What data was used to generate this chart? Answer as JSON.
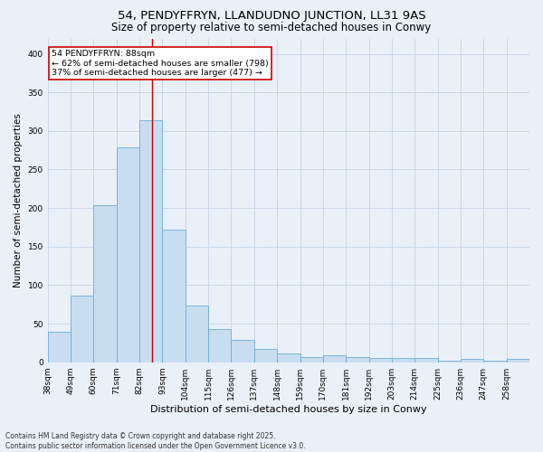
{
  "title1": "54, PENDYFFRYN, LLANDUDNO JUNCTION, LL31 9AS",
  "title2": "Size of property relative to semi-detached houses in Conwy",
  "xlabel": "Distribution of semi-detached houses by size in Conwy",
  "ylabel": "Number of semi-detached properties",
  "categories": [
    "38sqm",
    "49sqm",
    "60sqm",
    "71sqm",
    "82sqm",
    "93sqm",
    "104sqm",
    "115sqm",
    "126sqm",
    "137sqm",
    "148sqm",
    "159sqm",
    "170sqm",
    "181sqm",
    "192sqm",
    "203sqm",
    "214sqm",
    "225sqm",
    "236sqm",
    "247sqm",
    "258sqm"
  ],
  "values": [
    40,
    86,
    204,
    279,
    314,
    172,
    74,
    43,
    29,
    17,
    11,
    7,
    9,
    7,
    6,
    6,
    6,
    2,
    4,
    2,
    4
  ],
  "bar_color": "#c9ddf0",
  "bar_edge_color": "#6aaed6",
  "grid_color": "#c8d8e8",
  "annotation_text": "54 PENDYFFRYN: 88sqm\n← 62% of semi-detached houses are smaller (798)\n37% of semi-detached houses are larger (477) →",
  "annotation_box_color": "#ffffff",
  "annotation_box_edge": "#cc0000",
  "vline_color": "#cc0000",
  "footer": "Contains HM Land Registry data © Crown copyright and database right 2025.\nContains public sector information licensed under the Open Government Licence v3.0.",
  "bg_color": "#eaf0f8",
  "plot_bg_color": "#eaf0f8",
  "ylim": [
    0,
    420
  ],
  "title_fontsize": 9.5,
  "subtitle_fontsize": 8.5,
  "ylabel_fontsize": 7.5,
  "xlabel_fontsize": 8,
  "tick_fontsize": 6.5,
  "annotation_fontsize": 6.8,
  "footer_fontsize": 5.5
}
